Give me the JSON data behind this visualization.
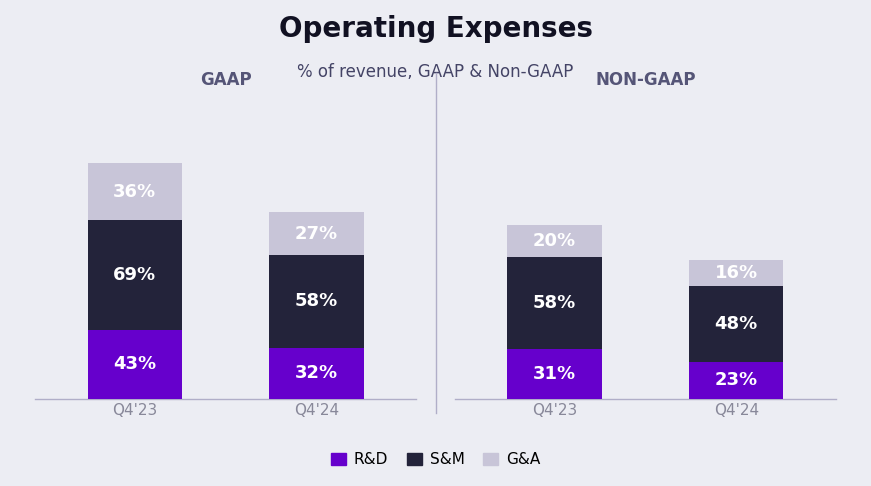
{
  "title": "Operating Expenses",
  "subtitle": "% of revenue, GAAP & Non-GAAP",
  "background_color": "#ecedf3",
  "gaap_label": "GAAP",
  "nongaap_label": "NON-GAAP",
  "categories_gaap": [
    "Q4'23",
    "Q4'24"
  ],
  "categories_nongaap": [
    "Q4'23",
    "Q4'24"
  ],
  "rd_color": "#6600cc",
  "sm_color": "#23233a",
  "ga_color": "#c8c5d8",
  "gaap_rd": [
    43,
    32
  ],
  "gaap_sm": [
    69,
    58
  ],
  "gaap_ga": [
    36,
    27
  ],
  "nongaap_rd": [
    31,
    23
  ],
  "nongaap_sm": [
    58,
    48
  ],
  "nongaap_ga": [
    20,
    16
  ],
  "bar_width": 0.52,
  "title_fontsize": 20,
  "subtitle_fontsize": 12,
  "label_fontsize": 13,
  "section_label_fontsize": 12,
  "tick_fontsize": 11,
  "legend_fontsize": 11,
  "divider_color": "#b0aec8",
  "text_color": "#ffffff",
  "title_color": "#111122",
  "subtitle_color": "#444466",
  "section_label_color": "#555577",
  "tick_color": "#888899",
  "ylim_max": 165
}
